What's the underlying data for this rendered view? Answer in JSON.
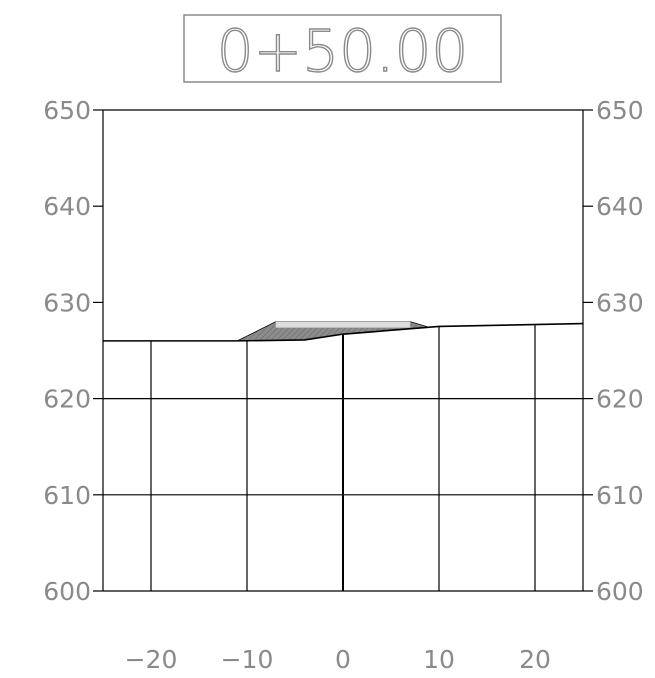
{
  "station_label": "0+50.00",
  "colors": {
    "frame": "#000000",
    "label": "#8a8a8a",
    "fill_dark": "#8c8c8c",
    "fill_light": "#dcdcdc",
    "hatch": "#555555"
  },
  "chart_data": {
    "type": "line",
    "title": "0+50.00",
    "xlim": [
      -25,
      25
    ],
    "ylim": [
      600,
      650
    ],
    "x_ticks": [
      -20,
      -10,
      0,
      10,
      20
    ],
    "x_tick_labels": [
      "−20",
      "−10",
      "0",
      "10",
      "20"
    ],
    "y_ticks": [
      600,
      610,
      620,
      630,
      640,
      650
    ],
    "y_tick_labels": [
      "600",
      "610",
      "620",
      "630",
      "640",
      "650"
    ],
    "ground_profile": {
      "x": [
        -25,
        -11,
        -4,
        0,
        10,
        25
      ],
      "y": [
        626,
        626,
        626.1,
        626.7,
        627.5,
        627.8
      ]
    },
    "embankment_section": {
      "x": [
        -11,
        -7,
        7,
        9,
        0,
        -4
      ],
      "y": [
        626,
        628,
        628,
        627.4,
        626.7,
        626.1
      ]
    },
    "pavement_top": {
      "x": [
        -7,
        7
      ],
      "y": [
        627.9,
        627.7
      ]
    }
  }
}
